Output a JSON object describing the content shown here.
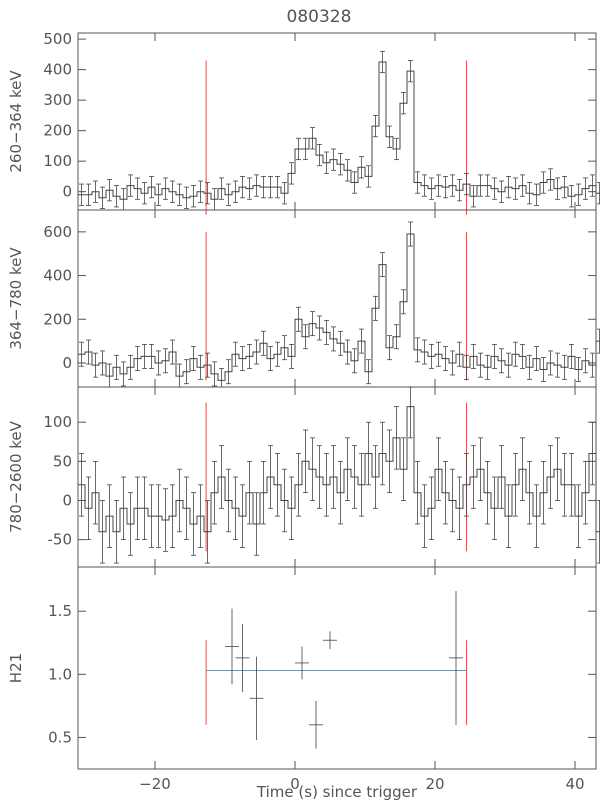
{
  "chart_data": {
    "type": "line",
    "title": "080328",
    "xlabel": "Time (s) since trigger",
    "xlim": [
      -31,
      43
    ],
    "xticks": [
      -20,
      0,
      20,
      40
    ],
    "xtick_labels": [
      "−20",
      "0",
      "20",
      "40"
    ],
    "colors": {
      "data": "#444444",
      "axis": "#555555",
      "marker": "#e05050",
      "fit": "#7a8fa8"
    },
    "markers": [
      -12.7,
      24.5
    ],
    "panels": [
      {
        "id": "band1",
        "ylabel": "260−364 keV",
        "ylim": [
          -60,
          520
        ],
        "yticks": [
          0,
          100,
          200,
          300,
          400,
          500
        ],
        "marker_range": [
          -75,
          430
        ],
        "t_start": -31,
        "dt": 1,
        "values": [
          -10,
          -10,
          0,
          -20,
          5,
          -15,
          -25,
          20,
          10,
          -5,
          15,
          -10,
          10,
          0,
          -10,
          -20,
          -15,
          0,
          -5,
          -25,
          10,
          -10,
          0,
          15,
          10,
          20,
          15,
          15,
          15,
          -5,
          60,
          140,
          140,
          175,
          120,
          95,
          105,
          90,
          70,
          30,
          80,
          50,
          215,
          425,
          180,
          140,
          290,
          395,
          30,
          20,
          10,
          20,
          15,
          20,
          5,
          25,
          -15,
          20,
          20,
          10,
          0,
          15,
          10,
          20,
          -5,
          -10,
          30,
          40,
          10,
          15,
          -15,
          -10,
          10,
          20,
          -5,
          0,
          20,
          30,
          -10,
          55,
          100,
          25,
          30,
          20,
          35,
          0,
          20,
          25,
          -10,
          15,
          20,
          20,
          5,
          0,
          -10,
          -15,
          -10,
          10,
          -5,
          0,
          20,
          10,
          -5,
          15,
          -10
        ],
        "errors": [
          35
        ]
      },
      {
        "id": "band2",
        "ylabel": "364−780 keV",
        "ylim": [
          -110,
          700
        ],
        "yticks": [
          0,
          200,
          400,
          600
        ],
        "marker_range": [
          -80,
          600
        ],
        "t_start": -31,
        "dt": 1,
        "values": [
          40,
          50,
          -10,
          0,
          -60,
          -20,
          -50,
          -20,
          20,
          30,
          30,
          0,
          10,
          50,
          -60,
          -40,
          20,
          -20,
          -10,
          -50,
          -80,
          -40,
          40,
          20,
          30,
          50,
          90,
          20,
          40,
          70,
          30,
          200,
          120,
          180,
          160,
          140,
          110,
          90,
          50,
          10,
          100,
          -40,
          250,
          450,
          70,
          120,
          280,
          590,
          60,
          50,
          30,
          40,
          20,
          0,
          40,
          -20,
          30,
          -10,
          -20,
          30,
          10,
          -10,
          40,
          30,
          -20,
          20,
          -30,
          0,
          -10,
          -20,
          30,
          -30,
          10,
          -10,
          100,
          70,
          60,
          50,
          -20,
          30,
          -10,
          20,
          -30,
          40,
          -20,
          -10,
          70,
          10,
          -20,
          -30,
          60,
          -10,
          -40,
          -20,
          -10,
          -60,
          -30,
          -40,
          -30,
          -50,
          30,
          -10,
          -20,
          -30,
          10
        ],
        "errors": [
          55
        ]
      },
      {
        "id": "band3",
        "ylabel": "780−2600 keV",
        "ylim": [
          -85,
          145
        ],
        "yticks": [
          -50,
          0,
          50,
          100
        ],
        "marker_range": [
          -65,
          125
        ],
        "t_start": -31,
        "dt": 1,
        "values": [
          20,
          -10,
          10,
          -40,
          -20,
          -40,
          -10,
          -30,
          -10,
          -10,
          -20,
          -20,
          -25,
          -20,
          0,
          -10,
          -30,
          -20,
          -40,
          10,
          30,
          0,
          -10,
          -20,
          10,
          -30,
          10,
          30,
          20,
          0,
          -10,
          20,
          50,
          40,
          30,
          20,
          30,
          10,
          40,
          30,
          20,
          60,
          30,
          60,
          50,
          80,
          40,
          120,
          10,
          -20,
          -10,
          40,
          10,
          0,
          -10,
          20,
          30,
          40,
          10,
          -10,
          30,
          -20,
          20,
          40,
          10,
          -20,
          10,
          30,
          40,
          20,
          20,
          -20,
          10,
          60,
          -40,
          10,
          -40,
          -20,
          -50,
          -50,
          -20,
          0,
          -10,
          -30,
          -40,
          20,
          10,
          -40,
          -20,
          0,
          30,
          10,
          10,
          110,
          30,
          -20,
          30,
          10,
          -10,
          0,
          50,
          -10,
          60,
          30,
          10,
          100
        ],
        "errors": [
          40
        ]
      },
      {
        "id": "hardness",
        "ylabel": "H21",
        "ylim": [
          0.25,
          1.85
        ],
        "yticks": [
          0.5,
          1.0,
          1.5
        ],
        "ytick_labels": [
          "0.5",
          "1.0",
          "1.5"
        ],
        "points": [
          {
            "x": -9,
            "y": 1.22,
            "xerr": 1.0,
            "yerr": 0.3
          },
          {
            "x": -7.5,
            "y": 1.13,
            "xerr": 1.0,
            "yerr": 0.27
          },
          {
            "x": -5.5,
            "y": 0.81,
            "xerr": 1.0,
            "yerr": 0.33
          },
          {
            "x": 1,
            "y": 1.09,
            "xerr": 1.0,
            "yerr": 0.13
          },
          {
            "x": 3,
            "y": 0.6,
            "xerr": 1.0,
            "yerr": 0.19
          },
          {
            "x": 5,
            "y": 1.27,
            "xerr": 1.0,
            "yerr": 0.07
          },
          {
            "x": 23,
            "y": 1.13,
            "xerr": 1.0,
            "yerr": 0.53
          }
        ],
        "fit_line": {
          "x": [
            -12.7,
            24.5
          ],
          "y": 1.03
        },
        "marker_range": [
          0.6,
          1.27
        ]
      }
    ]
  }
}
